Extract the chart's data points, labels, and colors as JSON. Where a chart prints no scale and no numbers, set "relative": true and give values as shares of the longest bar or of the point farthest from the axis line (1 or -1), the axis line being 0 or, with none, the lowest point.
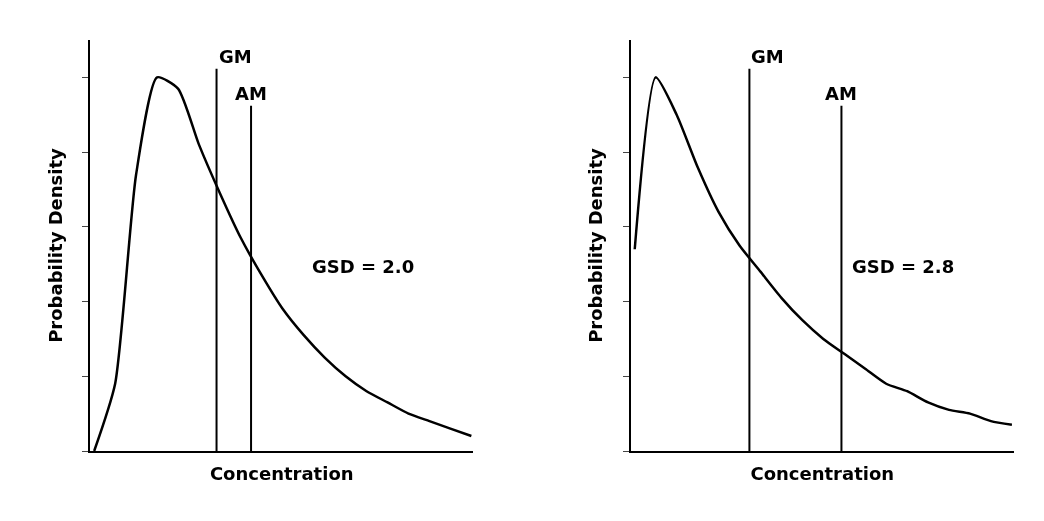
{
  "chart_data": [
    {
      "type": "line",
      "relative": true,
      "xlabel": "Concentration",
      "ylabel": "Probability Density",
      "categories": [
        null,
        null,
        null,
        null,
        null,
        null,
        null,
        null,
        null,
        null,
        null,
        null,
        null,
        null,
        null,
        null,
        null,
        null,
        null
      ],
      "series": [
        {
          "color": "#000000",
          "values": [
            0,
            0.18,
            0.74,
            1.0,
            0.97,
            0.82,
            0.69,
            0.57,
            0.47,
            0.38,
            0.31,
            0.25,
            0.2,
            0.16,
            0.13,
            0.1,
            0.08,
            0.06,
            0.04
          ]
        }
      ],
      "annotations": [
        "GM",
        "AM",
        "GSD = 2.0"
      ],
      "marker": "none",
      "line_style": "solid",
      "tick_labels": false
    },
    {
      "type": "line",
      "relative": true,
      "xlabel": "Concentration",
      "ylabel": "Probability Density",
      "categories": [
        null,
        null,
        null,
        null,
        null,
        null,
        null,
        null,
        null,
        null,
        null,
        null,
        null,
        null,
        null,
        null,
        null,
        null,
        null
      ],
      "series": [
        {
          "color": "#000000",
          "values": [
            0.54,
            1.0,
            0.9,
            0.76,
            0.64,
            0.55,
            0.48,
            0.41,
            0.35,
            0.3,
            0.26,
            0.22,
            0.18,
            0.16,
            0.13,
            0.11,
            0.1,
            0.08,
            0.07
          ]
        }
      ],
      "annotations": [
        "GM",
        "AM",
        "GSD = 2.8"
      ],
      "marker": "none",
      "line_style": "solid",
      "tick_labels": false
    }
  ]
}
